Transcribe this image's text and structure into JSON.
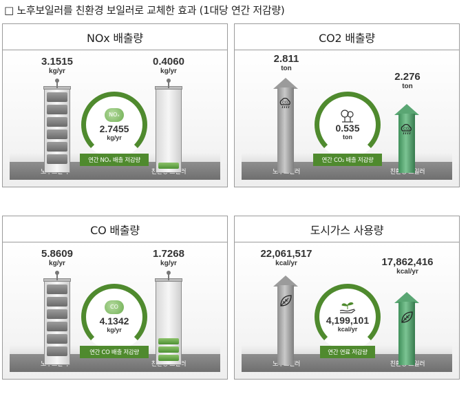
{
  "page_title": "□ 노후보일러를 친환경 보일러로 교체한 효과 (1대당 연간 저감량)",
  "labels": {
    "old_boiler": "노후보일러",
    "eco_boiler": "친환경 보일러"
  },
  "panels": {
    "nox": {
      "title": "NOx 배출량",
      "old": {
        "value": "3.1515",
        "unit": "kg/yr"
      },
      "new": {
        "value": "0.4060",
        "unit": "kg/yr"
      },
      "reduction": {
        "value": "2.7455",
        "unit": "kg/yr",
        "badge": "연간 NOₓ 배출 저감량",
        "icon_text": "NOₓ"
      },
      "new_fill_fraction": 0.13
    },
    "co2": {
      "title": "CO2 배출량",
      "old": {
        "value": "2.811",
        "unit": "ton"
      },
      "new": {
        "value": "2.276",
        "unit": "ton"
      },
      "reduction": {
        "value": "0.535",
        "unit": "ton",
        "badge": "연간 CO₂ 배출 저감량"
      },
      "old_icon_text": "CO₂",
      "new_icon_text": "CO₂"
    },
    "co": {
      "title": "CO 배출량",
      "old": {
        "value": "5.8609",
        "unit": "kg/yr"
      },
      "new": {
        "value": "1.7268",
        "unit": "kg/yr"
      },
      "reduction": {
        "value": "4.1342",
        "unit": "kg/yr",
        "badge": "연간 CO 배출 저감량",
        "icon_text": "CO"
      },
      "new_fill_fraction": 0.29
    },
    "gas": {
      "title": "도시가스 사용량",
      "old": {
        "value": "22,061,517",
        "unit": "kcal/yr"
      },
      "new": {
        "value": "17,862,416",
        "unit": "kcal/yr"
      },
      "reduction": {
        "value": "4,199,101",
        "unit": "kcal/yr",
        "badge": "연간 연료 저감량"
      }
    }
  },
  "colors": {
    "accent_green": "#4f8a2e",
    "arrow_green": "#5aa673",
    "gray": "#8f8f8f"
  }
}
